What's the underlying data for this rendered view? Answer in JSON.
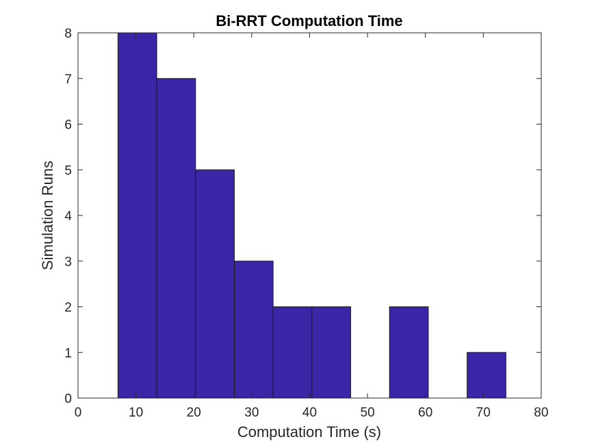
{
  "chart_data": {
    "type": "bar",
    "subtype": "histogram",
    "title": "Bi-RRT Computation Time",
    "xlabel": "Computation Time (s)",
    "ylabel": "Simulation Runs",
    "xlim": [
      0,
      80
    ],
    "ylim": [
      0,
      8
    ],
    "xticks": [
      "0",
      "10",
      "20",
      "30",
      "40",
      "50",
      "60",
      "70",
      "80"
    ],
    "yticks": [
      "0",
      "1",
      "2",
      "3",
      "4",
      "5",
      "6",
      "7",
      "8"
    ],
    "bins": [
      {
        "x0": 6.9,
        "x1": 13.6,
        "count": 8
      },
      {
        "x0": 13.6,
        "x1": 20.3,
        "count": 7
      },
      {
        "x0": 20.3,
        "x1": 27.0,
        "count": 5
      },
      {
        "x0": 27.0,
        "x1": 33.7,
        "count": 3
      },
      {
        "x0": 33.7,
        "x1": 40.4,
        "count": 2
      },
      {
        "x0": 40.4,
        "x1": 47.1,
        "count": 2
      },
      {
        "x0": 47.1,
        "x1": 53.8,
        "count": 0
      },
      {
        "x0": 53.8,
        "x1": 60.5,
        "count": 2
      },
      {
        "x0": 60.5,
        "x1": 67.2,
        "count": 0
      },
      {
        "x0": 67.2,
        "x1": 73.9,
        "count": 1
      }
    ],
    "grid": false,
    "colors": {
      "bar_fill": "#3a26a6",
      "bar_edge": "#1a1a1a",
      "axis": "#262626"
    }
  }
}
